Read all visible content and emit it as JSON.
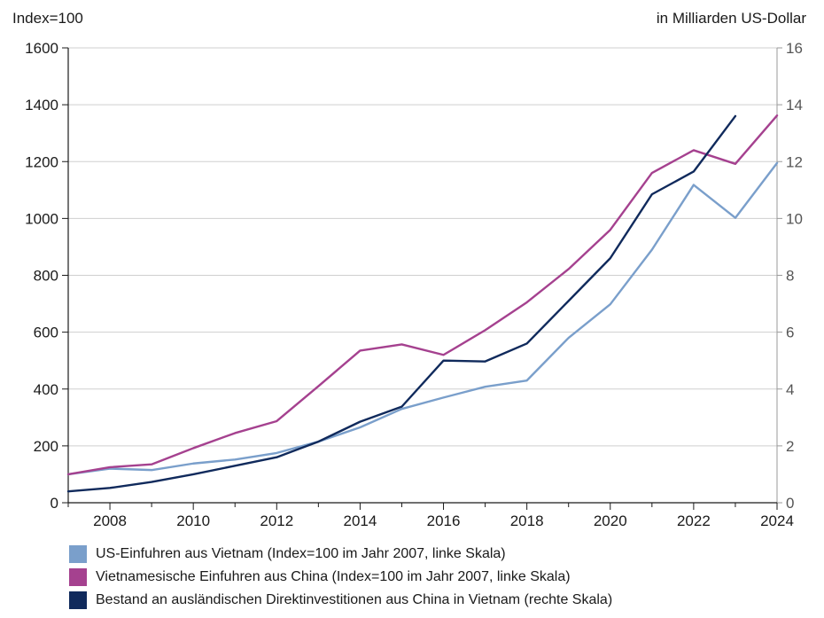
{
  "chart_data": {
    "type": "line",
    "title": "",
    "left_axis_label": "Index=100",
    "right_axis_label": "in Milliarden US-Dollar",
    "x": [
      2007,
      2008,
      2009,
      2010,
      2011,
      2012,
      2013,
      2014,
      2015,
      2016,
      2017,
      2018,
      2019,
      2020,
      2021,
      2022,
      2023,
      2024
    ],
    "xlim": [
      2007,
      2024
    ],
    "x_ticks": [
      2008,
      2010,
      2012,
      2014,
      2016,
      2018,
      2020,
      2022,
      2024
    ],
    "ylim_left": [
      0,
      1600
    ],
    "y_ticks_left": [
      0,
      200,
      400,
      600,
      800,
      1000,
      1200,
      1400,
      1600
    ],
    "ylim_right": [
      0,
      16
    ],
    "y_ticks_right": [
      0,
      2,
      4,
      6,
      8,
      10,
      12,
      14,
      16
    ],
    "grid": "horizontal",
    "legend_position": "bottom",
    "series": [
      {
        "name": "US-Einfuhren aus Vietnam (Index=100 im Jahr 2007, linke Skala)",
        "axis": "left",
        "color": "#7a9fcb",
        "values": [
          100,
          120,
          115,
          138,
          152,
          175,
          215,
          265,
          330,
          370,
          408,
          430,
          580,
          698,
          890,
          1118,
          1002,
          1195
        ]
      },
      {
        "name": "Vietnamesische Einfuhren aus China (Index=100 im Jahr 2007, linke Skala)",
        "axis": "left",
        "color": "#a5418f",
        "values": [
          100,
          125,
          135,
          192,
          245,
          287,
          410,
          535,
          557,
          520,
          607,
          705,
          822,
          960,
          1160,
          1240,
          1192,
          1362
        ]
      },
      {
        "name": "Bestand an ausländischen Direktinvestitionen aus China in Vietnam (rechte Skala)",
        "axis": "right",
        "color": "#102a5c",
        "values": [
          0.4,
          0.52,
          0.73,
          1.0,
          1.3,
          1.6,
          2.15,
          2.85,
          3.38,
          5.0,
          4.97,
          5.6,
          7.1,
          8.6,
          10.85,
          11.65,
          13.6,
          null
        ]
      }
    ]
  }
}
